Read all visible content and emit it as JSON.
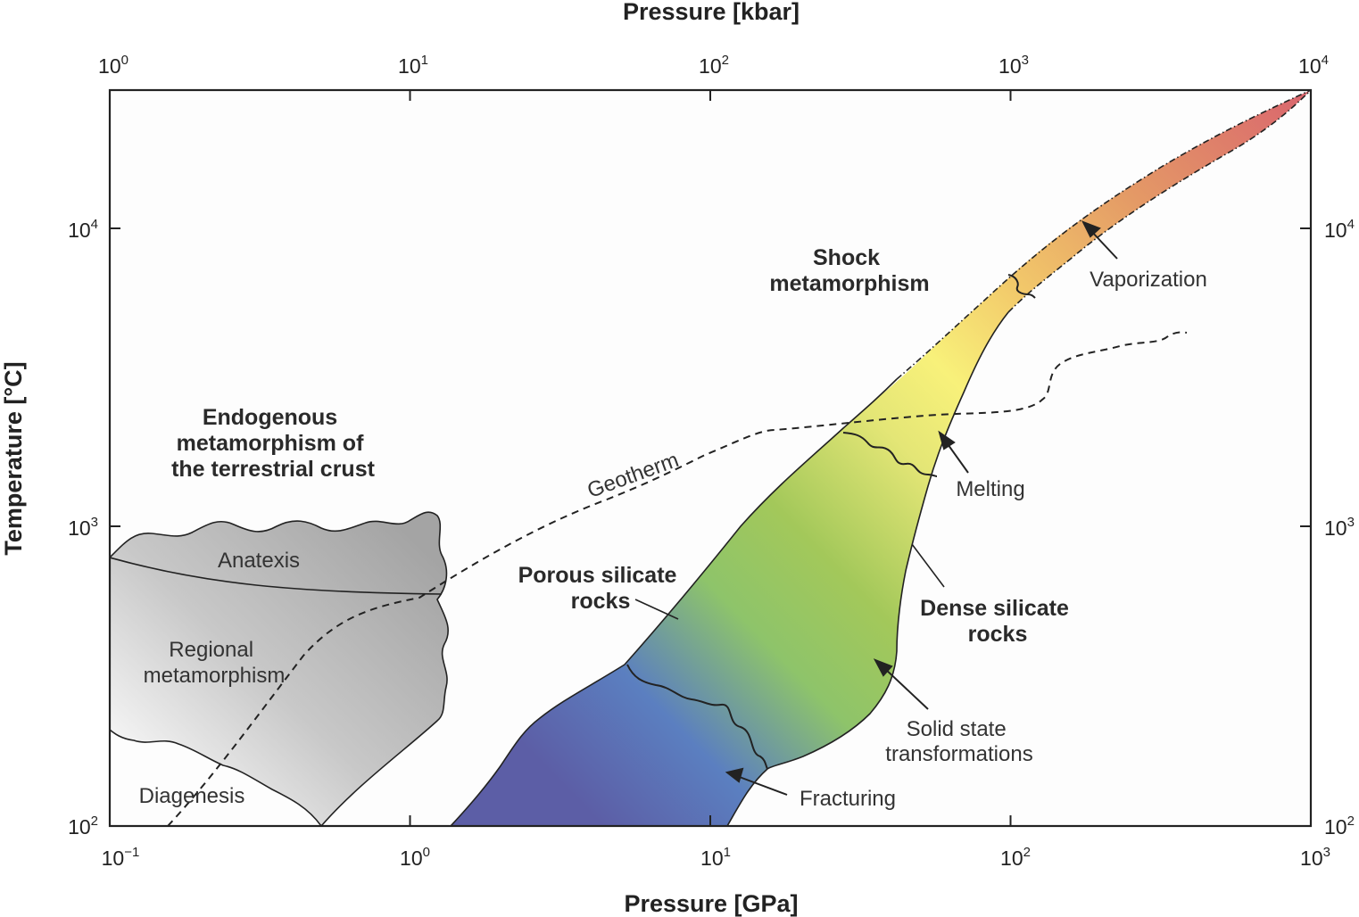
{
  "axes": {
    "top_title": "Pressure [kbar]",
    "bottom_title": "Pressure [GPa]",
    "left_title": "Temperature [°C]",
    "top_ticks": [
      {
        "base": "10",
        "exp": "0"
      },
      {
        "base": "10",
        "exp": "1"
      },
      {
        "base": "10",
        "exp": "2"
      },
      {
        "base": "10",
        "exp": "3"
      },
      {
        "base": "10",
        "exp": "4"
      }
    ],
    "bottom_ticks": [
      {
        "base": "10",
        "exp": "−1"
      },
      {
        "base": "10",
        "exp": "0"
      },
      {
        "base": "10",
        "exp": "1"
      },
      {
        "base": "10",
        "exp": "2"
      },
      {
        "base": "10",
        "exp": "3"
      }
    ],
    "left_ticks": [
      {
        "base": "10",
        "exp": "2"
      },
      {
        "base": "10",
        "exp": "3"
      },
      {
        "base": "10",
        "exp": "4"
      }
    ],
    "right_ticks": [
      {
        "base": "10",
        "exp": "2"
      },
      {
        "base": "10",
        "exp": "3"
      },
      {
        "base": "10",
        "exp": "4"
      }
    ],
    "x_range_gpa": [
      0.1,
      1000
    ],
    "x_scale": "log",
    "y_scale": "log"
  },
  "labels": {
    "endogenous": [
      "Endogenous",
      "metamorphism of",
      "the terrestrial crust"
    ],
    "anatexis": "Anatexis",
    "regional": [
      "Regional",
      "metamorphism"
    ],
    "diagenesis": "Diagenesis",
    "geotherm": "Geotherm",
    "shock": [
      "Shock",
      "metamorphism"
    ],
    "porous": [
      "Porous silicate",
      "rocks"
    ],
    "dense": [
      "Dense silicate",
      "rocks"
    ],
    "vaporization": "Vaporization",
    "melting": "Melting",
    "solid_state": [
      "Solid state",
      "transformations"
    ],
    "fracturing": "Fracturing"
  },
  "colors": {
    "shock_gradient": [
      "#5c5ea6",
      "#5b7fc0",
      "#8ec46a",
      "#a3c85a",
      "#e4e676",
      "#f8f17a",
      "#f2c86a",
      "#e49a66",
      "#d9646e"
    ],
    "endogenous_fill": "#a9a9a9",
    "frame": "#222222"
  }
}
